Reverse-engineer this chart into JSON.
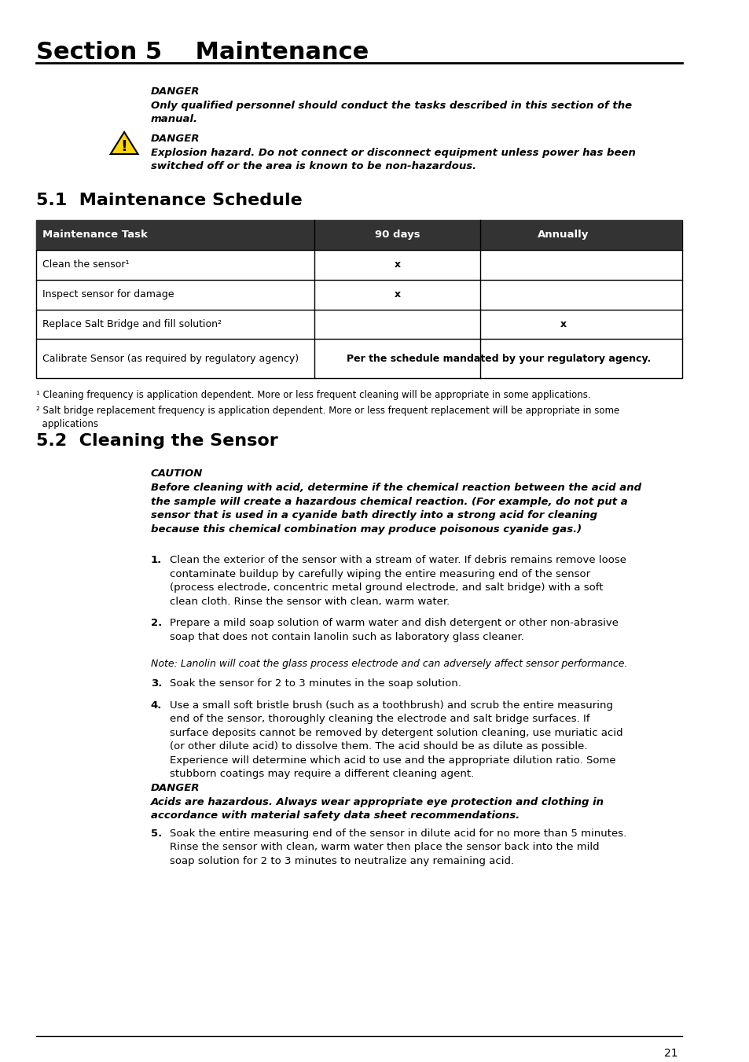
{
  "title": "Section 5    Maintenance",
  "bg_color": "#ffffff",
  "section51": "5.1  Maintenance Schedule",
  "section52": "5.2  Cleaning the Sensor",
  "danger1_label": "DANGER",
  "danger1_text": "Only qualified personnel should conduct the tasks described in this section of the\nmanual.",
  "danger2_label": "DANGER",
  "danger2_text": "Explosion hazard. Do not connect or disconnect equipment unless power has been\nswitched off or the area is known to be non-hazardous.",
  "table_header": [
    "Maintenance Task",
    "90 days",
    "Annually"
  ],
  "table_rows": [
    [
      "Clean the sensor¹",
      "x",
      ""
    ],
    [
      "Inspect sensor for damage",
      "x",
      ""
    ],
    [
      "Replace Salt Bridge and fill solution²",
      "",
      "x"
    ],
    [
      "Calibrate Sensor (as required by regulatory agency)",
      "Per the schedule mandated by your regulatory agency.",
      ""
    ]
  ],
  "footnote1": "¹ Cleaning frequency is application dependent. More or less frequent cleaning will be appropriate in some applications.",
  "footnote2": "² Salt bridge replacement frequency is application dependent. More or less frequent replacement will be appropriate in some\n  applications",
  "caution_label": "CAUTION",
  "caution_text": "Before cleaning with acid, determine if the chemical reaction between the acid and\nthe sample will create a hazardous chemical reaction. (For example, do not put a\nsensor that is used in a cyanide bath directly into a strong acid for cleaning\nbecause this chemical combination may produce poisonous cyanide gas.)",
  "step1_num": "1.",
  "step1_text": "Clean the exterior of the sensor with a stream of water. If debris remains remove loose\ncontaminate buildup by carefully wiping the entire measuring end of the sensor\n(process electrode, concentric metal ground electrode, and salt bridge) with a soft\nclean cloth. Rinse the sensor with clean, warm water.",
  "step2_num": "2.",
  "step2_text": "Prepare a mild soap solution of warm water and dish detergent or other non-abrasive\nsoap that does not contain lanolin such as laboratory glass cleaner.",
  "note_text": "Note: Lanolin will coat the glass process electrode and can adversely affect sensor performance.",
  "step3_num": "3.",
  "step3_text": "Soak the sensor for 2 to 3 minutes in the soap solution.",
  "step4_num": "4.",
  "step4_text": "Use a small soft bristle brush (such as a toothbrush) and scrub the entire measuring\nend of the sensor, thoroughly cleaning the electrode and salt bridge surfaces. If\nsurface deposits cannot be removed by detergent solution cleaning, use muriatic acid\n(or other dilute acid) to dissolve them. The acid should be as dilute as possible.\nExperience will determine which acid to use and the appropriate dilution ratio. Some\nstubborn coatings may require a different cleaning agent.",
  "danger3_label": "DANGER",
  "danger3_text": "Acids are hazardous. Always wear appropriate eye protection and clothing in\naccordance with material safety data sheet recommendations.",
  "step5_num": "5.",
  "step5_text": "Soak the entire measuring end of the sensor in dilute acid for no more than 5 minutes.\nRinse the sensor with clean, warm water then place the sensor back into the mild\nsoap solution for 2 to 3 minutes to neutralize any remaining acid.",
  "page_number": "21"
}
